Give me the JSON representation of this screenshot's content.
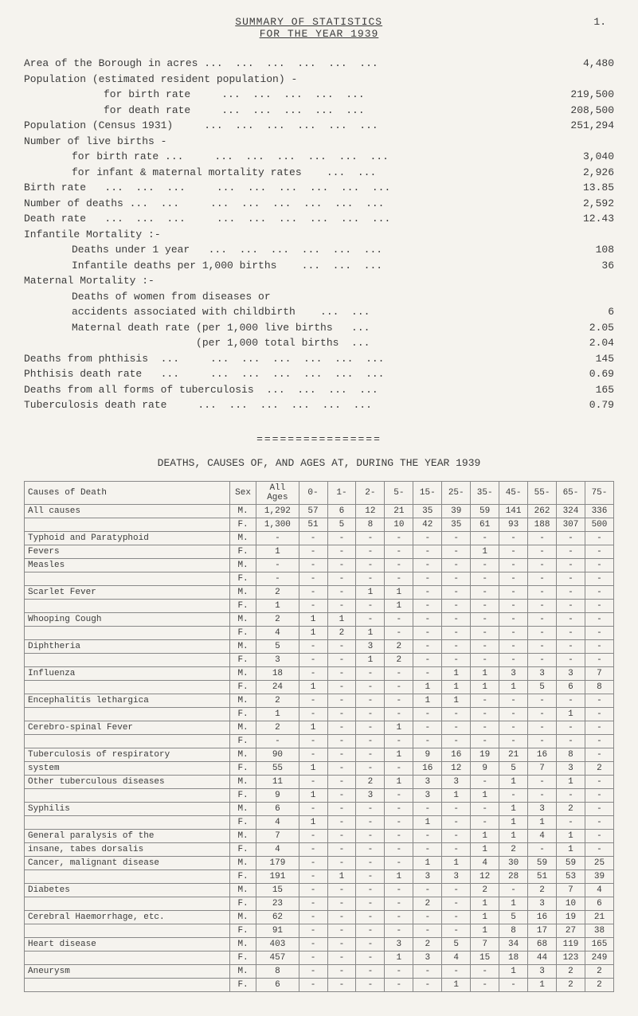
{
  "header": {
    "title_line1": "SUMMARY OF STATISTICS",
    "title_line2": "FOR THE YEAR 1939",
    "page_number": "1."
  },
  "stats": [
    {
      "label": "Area of the Borough in acres ...  ...  ...  ...  ...  ...",
      "value": "4,480",
      "indent": 0
    },
    {
      "label": "Population (estimated resident population) -",
      "value": "",
      "indent": 0
    },
    {
      "label": "for birth rate     ...  ...  ...  ...  ...",
      "value": "219,500",
      "indent": 2
    },
    {
      "label": "for death rate     ...  ...  ...  ...  ...",
      "value": "208,500",
      "indent": 2
    },
    {
      "label": "Population (Census 1931)     ...  ...  ...  ...  ...  ...",
      "value": "251,294",
      "indent": 0
    },
    {
      "label": "Number of live births -",
      "value": "",
      "indent": 0
    },
    {
      "label": "for birth rate ...     ...  ...  ...  ...  ...  ...",
      "value": "3,040",
      "indent": 1
    },
    {
      "label": "for infant & maternal mortality rates    ...  ...",
      "value": "2,926",
      "indent": 1
    },
    {
      "label": "Birth rate   ...  ...  ...     ...  ...  ...  ...  ...  ...",
      "value": "13.85",
      "indent": 0
    },
    {
      "label": "Number of deaths ...  ...     ...  ...  ...  ...  ...  ...",
      "value": "2,592",
      "indent": 0
    },
    {
      "label": "Death rate   ...  ...  ...     ...  ...  ...  ...  ...  ...",
      "value": "12.43",
      "indent": 0
    },
    {
      "label": "Infantile Mortality :-",
      "value": "",
      "indent": 0
    },
    {
      "label": "Deaths under 1 year   ...  ...  ...  ...  ...  ...",
      "value": "108",
      "indent": 1
    },
    {
      "label": "Infantile deaths per 1,000 births    ...  ...  ...",
      "value": "36",
      "indent": 1
    },
    {
      "label": "Maternal Mortality :-",
      "value": "",
      "indent": 0
    },
    {
      "label": "Deaths of women from diseases or",
      "value": "",
      "indent": 1
    },
    {
      "label": "accidents associated with childbirth    ...  ...",
      "value": "6",
      "indent": 1
    },
    {
      "label": "Maternal death rate (per 1,000 live births   ...",
      "value": "2.05",
      "indent": 1
    },
    {
      "label": "                    (per 1,000 total births  ...",
      "value": "2.04",
      "indent": 1
    },
    {
      "label": "Deaths from phthisis  ...     ...  ...  ...  ...  ...  ...",
      "value": "145",
      "indent": 0
    },
    {
      "label": "Phthisis death rate   ...     ...  ...  ...  ...  ...  ...",
      "value": "0.69",
      "indent": 0
    },
    {
      "label": "Deaths from all forms of tuberculosis  ...  ...  ...  ...",
      "value": "165",
      "indent": 0
    },
    {
      "label": "Tuberculosis death rate     ...  ...  ...  ...  ...  ...",
      "value": "0.79",
      "indent": 0
    }
  ],
  "separator": "================",
  "table_title": "DEATHS, CAUSES OF, AND AGES AT, DURING THE YEAR 1939",
  "table": {
    "columns": [
      "Causes of Death",
      "Sex",
      "All Ages",
      "0-",
      "1-",
      "2-",
      "5-",
      "15-",
      "25-",
      "35-",
      "45-",
      "55-",
      "65-",
      "75-"
    ],
    "rows": [
      [
        "All causes",
        "M.",
        "1,292",
        "57",
        "6",
        "12",
        "21",
        "35",
        "39",
        "59",
        "141",
        "262",
        "324",
        "336"
      ],
      [
        "",
        "F.",
        "1,300",
        "51",
        "5",
        "8",
        "10",
        "42",
        "35",
        "61",
        "93",
        "188",
        "307",
        "500"
      ],
      [
        "Typhoid and Paratyphoid",
        "M.",
        "-",
        "-",
        "-",
        "-",
        "-",
        "-",
        "-",
        "-",
        "-",
        "-",
        "-",
        "-"
      ],
      [
        "Fevers",
        "F.",
        "1",
        "-",
        "-",
        "-",
        "-",
        "-",
        "-",
        "1",
        "-",
        "-",
        "-",
        "-"
      ],
      [
        "Measles",
        "M.",
        "-",
        "-",
        "-",
        "-",
        "-",
        "-",
        "-",
        "-",
        "-",
        "-",
        "-",
        "-"
      ],
      [
        "",
        "F.",
        "-",
        "-",
        "-",
        "-",
        "-",
        "-",
        "-",
        "-",
        "-",
        "-",
        "-",
        "-"
      ],
      [
        "Scarlet Fever",
        "M.",
        "2",
        "-",
        "-",
        "1",
        "1",
        "-",
        "-",
        "-",
        "-",
        "-",
        "-",
        "-"
      ],
      [
        "",
        "F.",
        "1",
        "-",
        "-",
        "-",
        "1",
        "-",
        "-",
        "-",
        "-",
        "-",
        "-",
        "-"
      ],
      [
        "Whooping Cough",
        "M.",
        "2",
        "1",
        "1",
        "-",
        "-",
        "-",
        "-",
        "-",
        "-",
        "-",
        "-",
        "-"
      ],
      [
        "",
        "F.",
        "4",
        "1",
        "2",
        "1",
        "-",
        "-",
        "-",
        "-",
        "-",
        "-",
        "-",
        "-"
      ],
      [
        "Diphtheria",
        "M.",
        "5",
        "-",
        "-",
        "3",
        "2",
        "-",
        "-",
        "-",
        "-",
        "-",
        "-",
        "-"
      ],
      [
        "",
        "F.",
        "3",
        "-",
        "-",
        "1",
        "2",
        "-",
        "-",
        "-",
        "-",
        "-",
        "-",
        "-"
      ],
      [
        "Influenza",
        "M.",
        "18",
        "-",
        "-",
        "-",
        "-",
        "-",
        "1",
        "1",
        "3",
        "3",
        "3",
        "7"
      ],
      [
        "",
        "F.",
        "24",
        "1",
        "-",
        "-",
        "-",
        "1",
        "1",
        "1",
        "1",
        "5",
        "6",
        "8"
      ],
      [
        "Encephalitis lethargica",
        "M.",
        "2",
        "-",
        "-",
        "-",
        "-",
        "1",
        "1",
        "-",
        "-",
        "-",
        "-",
        "-"
      ],
      [
        "",
        "F.",
        "1",
        "-",
        "-",
        "-",
        "-",
        "-",
        "-",
        "-",
        "-",
        "-",
        "1",
        "-"
      ],
      [
        "Cerebro-spinal Fever",
        "M.",
        "2",
        "1",
        "-",
        "-",
        "1",
        "-",
        "-",
        "-",
        "-",
        "-",
        "-",
        "-"
      ],
      [
        "",
        "F.",
        "-",
        "-",
        "-",
        "-",
        "-",
        "-",
        "-",
        "-",
        "-",
        "-",
        "-",
        "-"
      ],
      [
        "Tuberculosis of respiratory",
        "M.",
        "90",
        "-",
        "-",
        "-",
        "1",
        "9",
        "16",
        "19",
        "21",
        "16",
        "8",
        "-"
      ],
      [
        "  system",
        "F.",
        "55",
        "1",
        "-",
        "-",
        "-",
        "16",
        "12",
        "9",
        "5",
        "7",
        "3",
        "2"
      ],
      [
        "Other tuberculous diseases",
        "M.",
        "11",
        "-",
        "-",
        "2",
        "1",
        "3",
        "3",
        "-",
        "1",
        "-",
        "1",
        "-"
      ],
      [
        "",
        "F.",
        "9",
        "1",
        "-",
        "3",
        "-",
        "3",
        "1",
        "1",
        "-",
        "-",
        "-",
        "-"
      ],
      [
        "Syphilis",
        "M.",
        "6",
        "-",
        "-",
        "-",
        "-",
        "-",
        "-",
        "-",
        "1",
        "3",
        "2",
        "-"
      ],
      [
        "",
        "F.",
        "4",
        "1",
        "-",
        "-",
        "-",
        "1",
        "-",
        "-",
        "1",
        "1",
        "-",
        "-"
      ],
      [
        "General paralysis of the",
        "M.",
        "7",
        "-",
        "-",
        "-",
        "-",
        "-",
        "-",
        "1",
        "1",
        "4",
        "1",
        "-"
      ],
      [
        "insane, tabes dorsalis",
        "F.",
        "4",
        "-",
        "-",
        "-",
        "-",
        "-",
        "-",
        "1",
        "2",
        "-",
        "1",
        "-"
      ],
      [
        "Cancer, malignant disease",
        "M.",
        "179",
        "-",
        "-",
        "-",
        "-",
        "1",
        "1",
        "4",
        "30",
        "59",
        "59",
        "25"
      ],
      [
        "",
        "F.",
        "191",
        "-",
        "1",
        "-",
        "1",
        "3",
        "3",
        "12",
        "28",
        "51",
        "53",
        "39"
      ],
      [
        "Diabetes",
        "M.",
        "15",
        "-",
        "-",
        "-",
        "-",
        "-",
        "-",
        "2",
        "-",
        "2",
        "7",
        "4"
      ],
      [
        "",
        "F.",
        "23",
        "-",
        "-",
        "-",
        "-",
        "2",
        "-",
        "1",
        "1",
        "3",
        "10",
        "6"
      ],
      [
        "Cerebral Haemorrhage, etc.",
        "M.",
        "62",
        "-",
        "-",
        "-",
        "-",
        "-",
        "-",
        "1",
        "5",
        "16",
        "19",
        "21"
      ],
      [
        "",
        "F.",
        "91",
        "-",
        "-",
        "-",
        "-",
        "-",
        "-",
        "1",
        "8",
        "17",
        "27",
        "38"
      ],
      [
        "Heart disease",
        "M.",
        "403",
        "-",
        "-",
        "-",
        "3",
        "2",
        "5",
        "7",
        "34",
        "68",
        "119",
        "165"
      ],
      [
        "",
        "F.",
        "457",
        "-",
        "-",
        "-",
        "1",
        "3",
        "4",
        "15",
        "18",
        "44",
        "123",
        "249"
      ],
      [
        "Aneurysm",
        "M.",
        "8",
        "-",
        "-",
        "-",
        "-",
        "-",
        "-",
        "-",
        "1",
        "3",
        "2",
        "2"
      ],
      [
        "",
        "F.",
        "6",
        "-",
        "-",
        "-",
        "-",
        "-",
        "1",
        "-",
        "-",
        "1",
        "2",
        "2"
      ]
    ]
  }
}
